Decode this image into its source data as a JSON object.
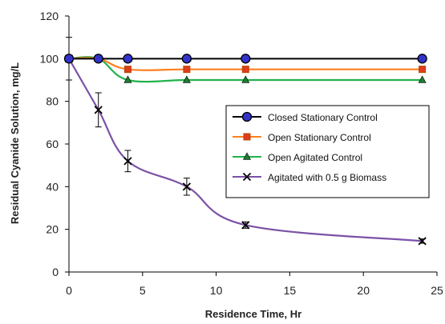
{
  "chart_data": {
    "type": "line",
    "title": "",
    "xlabel": "Residence Time, Hr",
    "ylabel": "Residual Cyanide Solution, mg/L",
    "xlim": [
      0,
      25
    ],
    "ylim": [
      0,
      120
    ],
    "xticks": [
      0,
      5,
      10,
      15,
      20,
      25
    ],
    "yticks": [
      0,
      20,
      40,
      60,
      80,
      100,
      120
    ],
    "grid": false,
    "legend_position": "right-middle",
    "series": [
      {
        "name": "Closed Stationary Control",
        "marker": "circle",
        "color": "#000000",
        "marker_fill": "#3333cc",
        "x": [
          0,
          2,
          4,
          8,
          12,
          24
        ],
        "y": [
          100,
          100,
          100,
          100,
          100,
          100
        ],
        "error": []
      },
      {
        "name": "Open Stationary Control",
        "marker": "square",
        "color": "#ff7f1e",
        "marker_fill": "#e03c1e",
        "x": [
          0,
          2,
          4,
          8,
          12,
          24
        ],
        "y": [
          100,
          100,
          95,
          95,
          95,
          95
        ],
        "error": []
      },
      {
        "name": "Open Agitated Control",
        "marker": "triangle",
        "color": "#22b24c",
        "marker_fill": "#1e7d32",
        "x": [
          0,
          2,
          4,
          8,
          12,
          24
        ],
        "y": [
          100,
          100,
          90,
          90,
          90,
          90
        ],
        "error": []
      },
      {
        "name": "Agitated with 0.5 g Biomass",
        "marker": "x",
        "color": "#7b52a6",
        "marker_fill": "#000000",
        "x": [
          0,
          2,
          4,
          8,
          12,
          24
        ],
        "y": [
          100,
          76,
          52,
          40,
          22,
          14.5
        ],
        "error": [
          10,
          8,
          5,
          4,
          1.5,
          1
        ]
      }
    ]
  }
}
